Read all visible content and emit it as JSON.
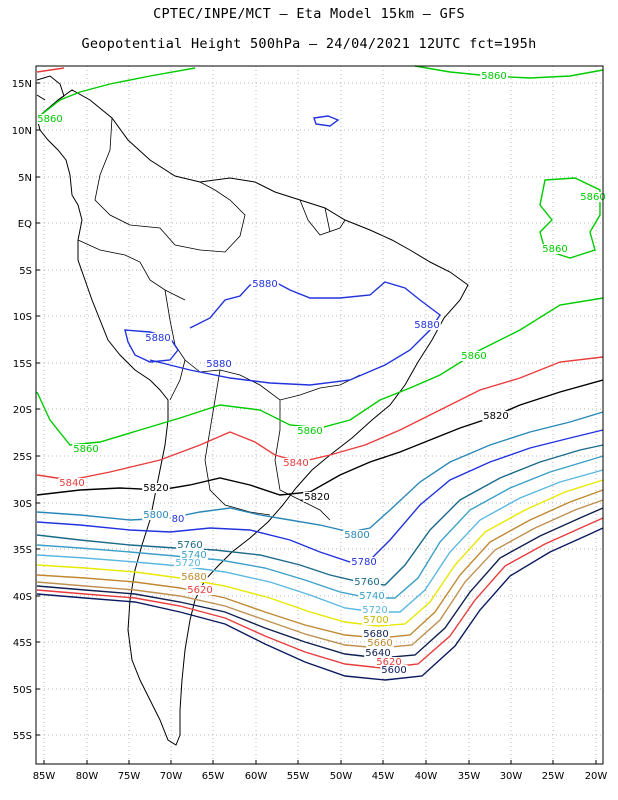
{
  "header": {
    "line1": "CPTEC/INPE/MCT –  Eta Model 15km – GFS",
    "line2": "Geopotential Height 500hPa – 24/04/2021 12UTC fct=195h"
  },
  "axes": {
    "lat_labels": [
      "15N",
      "10N",
      "5N",
      "EQ",
      "5S",
      "10S",
      "15S",
      "20S",
      "25S",
      "30S",
      "35S",
      "40S",
      "45S",
      "50S",
      "55S"
    ],
    "lon_labels": [
      "85W",
      "80W",
      "75W",
      "70W",
      "65W",
      "60W",
      "55W",
      "50W",
      "45W",
      "40W",
      "35W",
      "30W",
      "25W",
      "20W"
    ]
  },
  "contour_levels": [
    {
      "value": "5880",
      "color": "#2233dd"
    },
    {
      "value": "5860",
      "color": "#00cc00"
    },
    {
      "value": "5840",
      "color": "#e83c3c"
    },
    {
      "value": "5820",
      "color": "#000000"
    },
    {
      "value": "5800",
      "color": "#2a88b8"
    },
    {
      "value": "5780",
      "color": "#2233dd"
    },
    {
      "value": "5760",
      "color": "#1a6a8a"
    },
    {
      "value": "5740",
      "color": "#3aa0c8"
    },
    {
      "value": "5720",
      "color": "#5ab8e0"
    },
    {
      "value": "5700",
      "color": "#e8e800"
    },
    {
      "value": "5680",
      "color": "#c08830"
    },
    {
      "value": "5660",
      "color": "#c09050"
    },
    {
      "value": "5640",
      "color": "#102050"
    },
    {
      "value": "5620",
      "color": "#e83c3c"
    },
    {
      "value": "5600",
      "color": "#0a1a60"
    }
  ],
  "contour_labels": [
    {
      "text": "5860",
      "color": "#00cc00"
    },
    {
      "text": "5860",
      "color": "#00cc00"
    },
    {
      "text": "5860",
      "color": "#00cc00"
    },
    {
      "text": "5860",
      "color": "#00cc00"
    },
    {
      "text": "5860",
      "color": "#00cc00"
    },
    {
      "text": "5860",
      "color": "#00cc00"
    },
    {
      "text": "5860",
      "color": "#00cc00"
    },
    {
      "text": "5880",
      "color": "#2233dd"
    },
    {
      "text": "5880",
      "color": "#2233dd"
    },
    {
      "text": "5880",
      "color": "#2233dd"
    },
    {
      "text": "5880",
      "color": "#2233dd"
    },
    {
      "text": "5840",
      "color": "#e83c3c"
    },
    {
      "text": "5840",
      "color": "#e83c3c"
    },
    {
      "text": "5820",
      "color": "#000000"
    },
    {
      "text": "5820",
      "color": "#000000"
    },
    {
      "text": "5820",
      "color": "#000000"
    },
    {
      "text": "5800",
      "color": "#2a88b8"
    },
    {
      "text": "80",
      "color": "#2233dd"
    },
    {
      "text": "5800",
      "color": "#2a88b8"
    },
    {
      "text": "5760",
      "color": "#1a6a8a"
    },
    {
      "text": "5740",
      "color": "#3aa0c8"
    },
    {
      "text": "5720",
      "color": "#5ab8e0"
    },
    {
      "text": "5680",
      "color": "#c08830"
    },
    {
      "text": "5620",
      "color": "#e83c3c"
    },
    {
      "text": "5780",
      "color": "#2233dd"
    },
    {
      "text": "5760",
      "color": "#1a6a8a"
    },
    {
      "text": "5740",
      "color": "#3aa0c8"
    },
    {
      "text": "5720",
      "color": "#5ab8e0"
    },
    {
      "text": "5700",
      "color": "#c8b800"
    },
    {
      "text": "5680",
      "color": "#102050"
    },
    {
      "text": "5660",
      "color": "#c08830"
    },
    {
      "text": "5640",
      "color": "#102050"
    },
    {
      "text": "5620",
      "color": "#e83c3c"
    },
    {
      "text": "5600",
      "color": "#0a1a60"
    }
  ]
}
